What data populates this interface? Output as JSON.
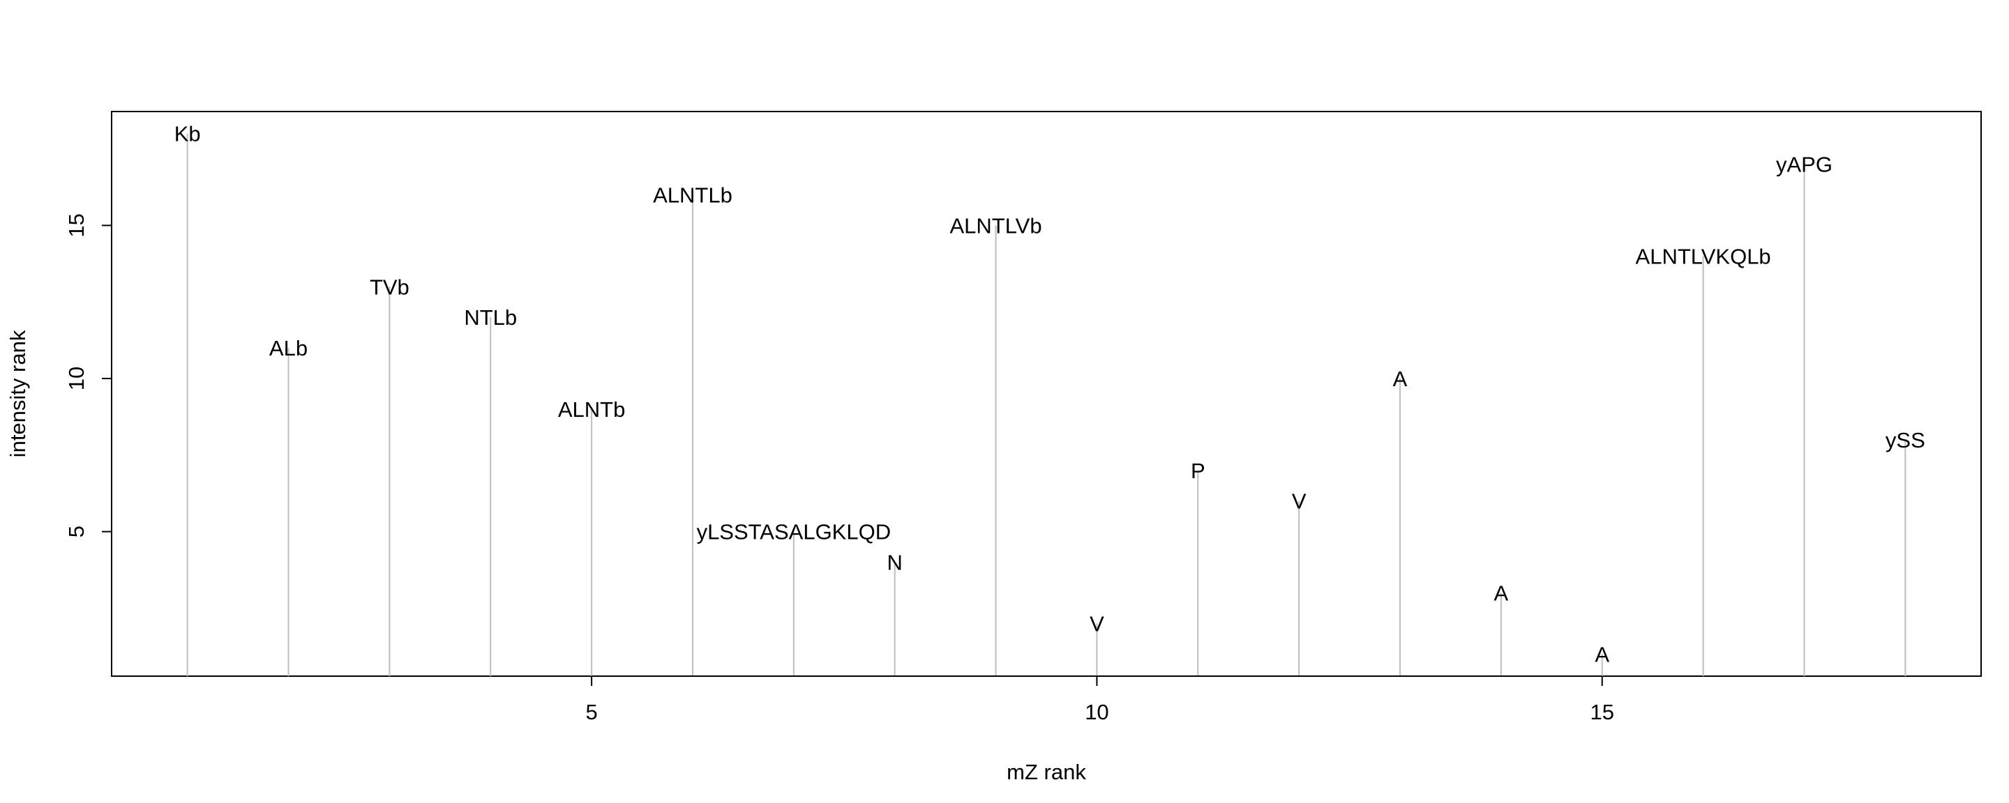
{
  "chart_data": {
    "type": "bar",
    "style": "vertical lines (needle plot) with text labels at tips",
    "xlabel": "mZ rank",
    "ylabel": "intensity rank",
    "xlim": [
      0.25,
      18.75
    ],
    "ylim": [
      0.28,
      18.72
    ],
    "x_ticks": [
      5,
      10,
      15
    ],
    "y_ticks": [
      5,
      10,
      15
    ],
    "grid": false,
    "legend": "none",
    "line_color": "#bebebe",
    "points": [
      {
        "x": 1,
        "y": 18,
        "label": "Kb"
      },
      {
        "x": 2,
        "y": 11,
        "label": "ALb"
      },
      {
        "x": 3,
        "y": 13,
        "label": "TVb"
      },
      {
        "x": 4,
        "y": 12,
        "label": "NTLb"
      },
      {
        "x": 5,
        "y": 9,
        "label": "ALNTb"
      },
      {
        "x": 6,
        "y": 16,
        "label": "ALNTLb"
      },
      {
        "x": 7,
        "y": 5,
        "label": "yLSSTASALGKLQD"
      },
      {
        "x": 8,
        "y": 4,
        "label": "N"
      },
      {
        "x": 9,
        "y": 15,
        "label": "ALNTLVb"
      },
      {
        "x": 10,
        "y": 2,
        "label": "V"
      },
      {
        "x": 11,
        "y": 7,
        "label": "P"
      },
      {
        "x": 12,
        "y": 6,
        "label": "V"
      },
      {
        "x": 13,
        "y": 10,
        "label": "A"
      },
      {
        "x": 14,
        "y": 3,
        "label": "A"
      },
      {
        "x": 15,
        "y": 1,
        "label": "A"
      },
      {
        "x": 16,
        "y": 14,
        "label": "ALNTLVKQLb"
      },
      {
        "x": 17,
        "y": 17,
        "label": "yAPG"
      },
      {
        "x": 18,
        "y": 8,
        "label": "ySS"
      }
    ]
  }
}
